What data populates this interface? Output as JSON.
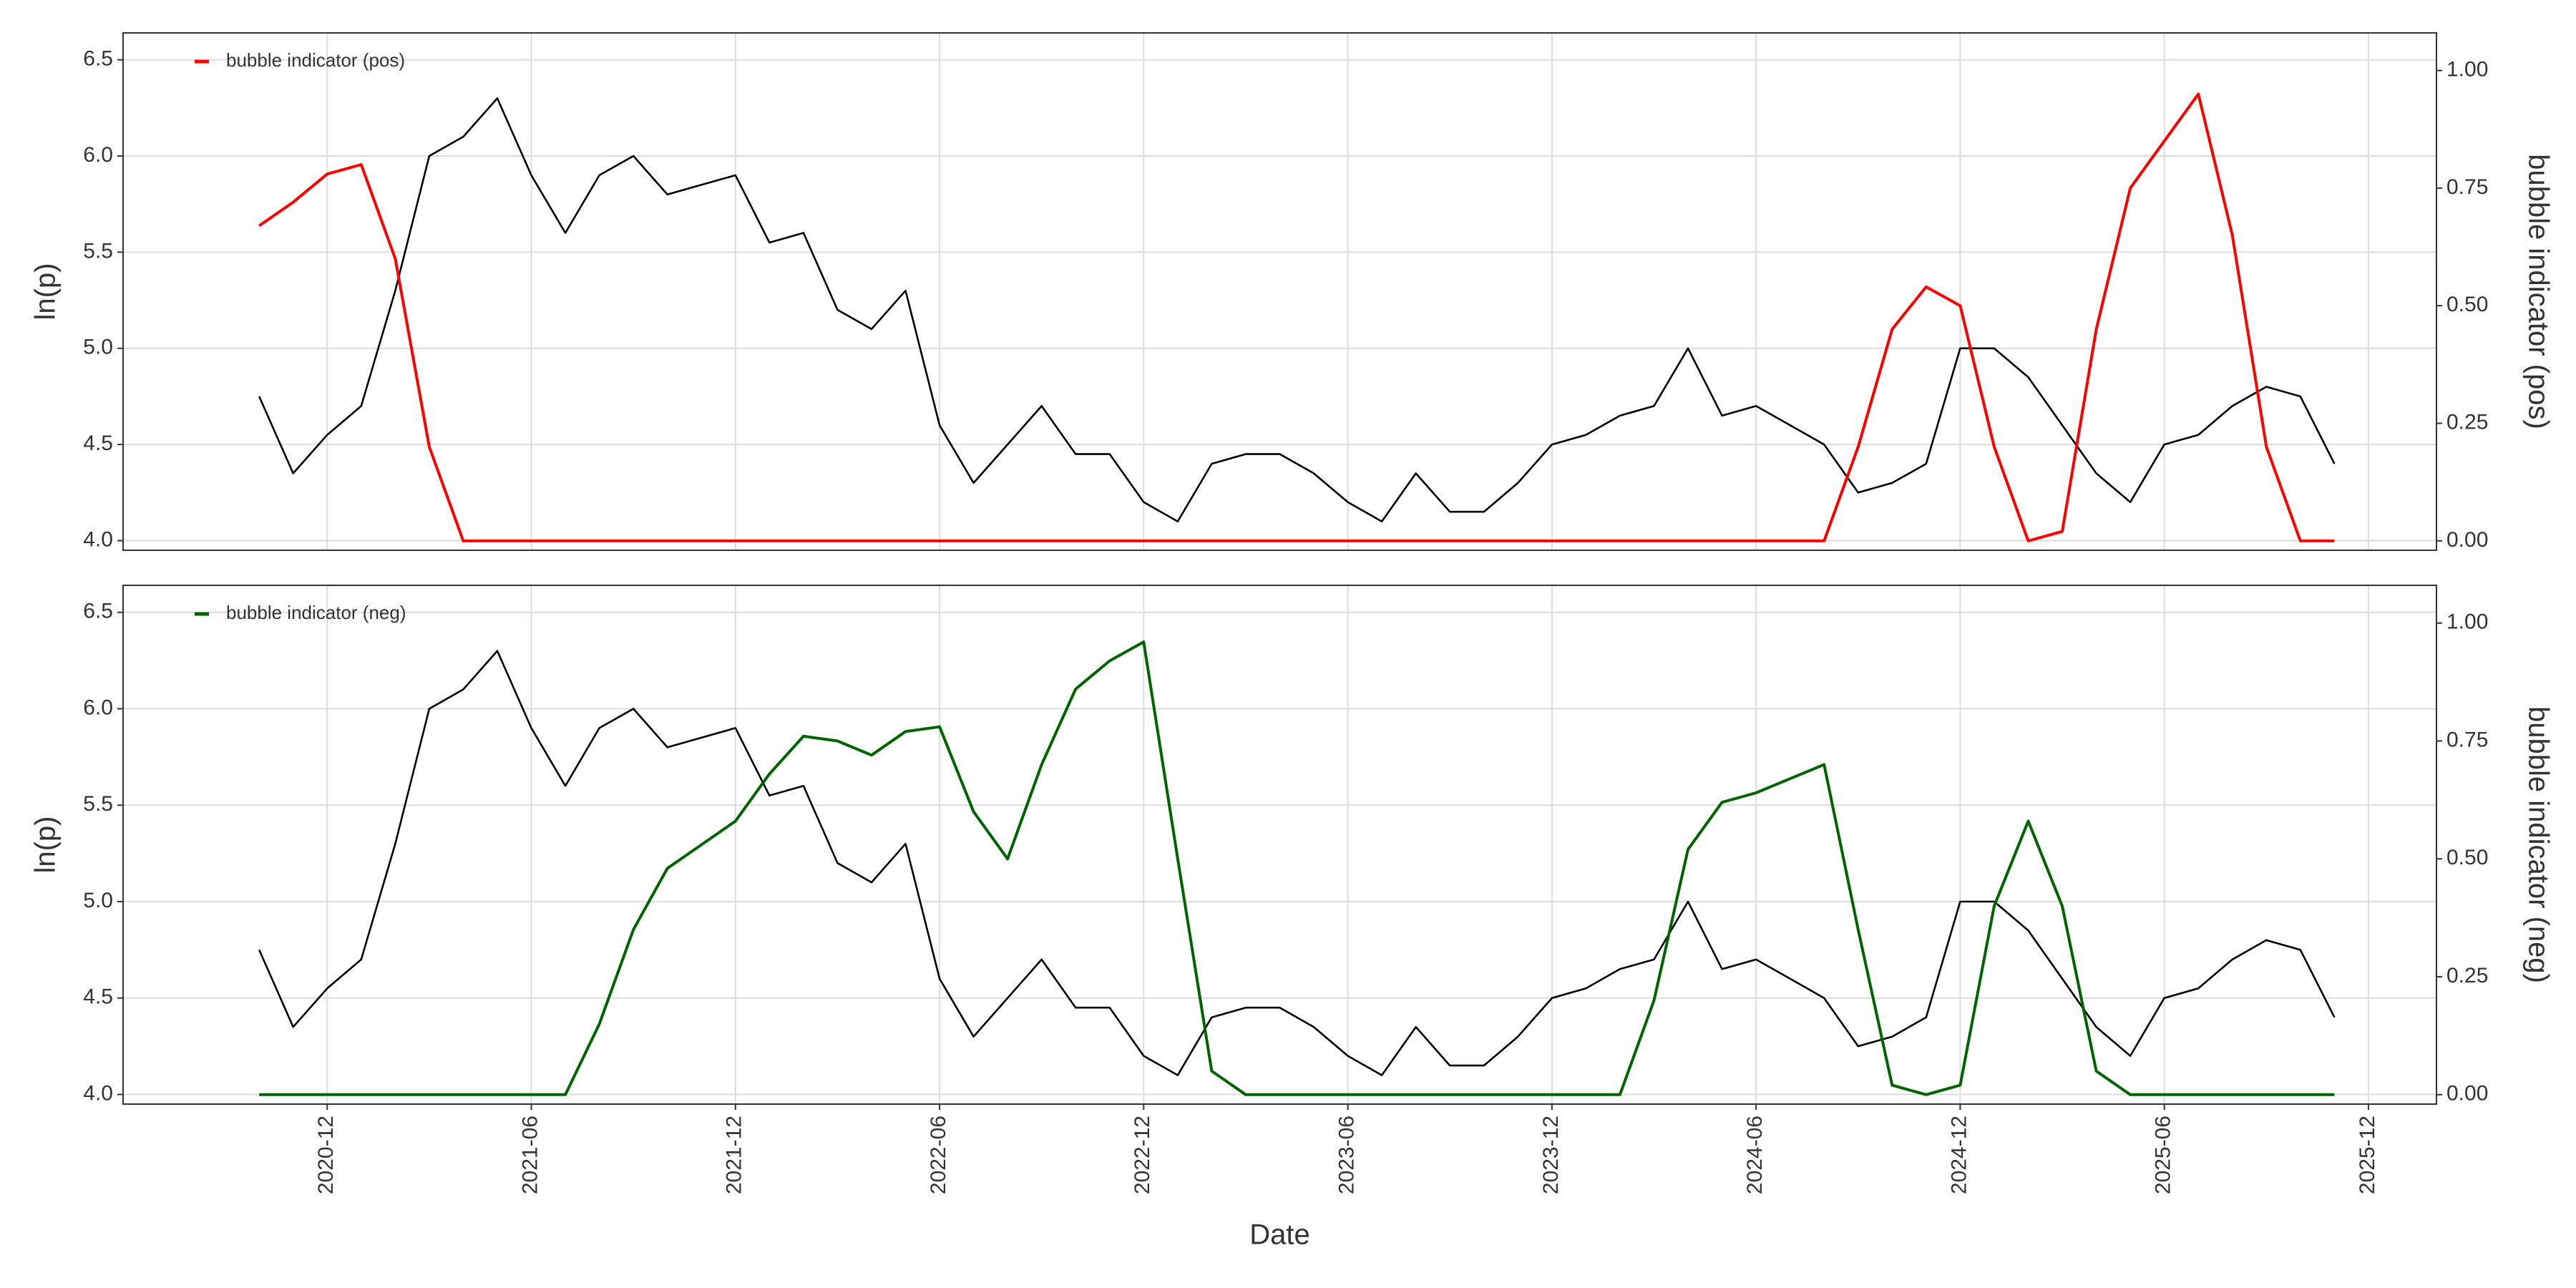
{
  "chart_data": [
    {
      "type": "line",
      "y_label": "ln(p)",
      "y2_label": "bubble indicator (pos)",
      "legend": "top-left",
      "grid": true,
      "xlim": [
        "2020-06",
        "2026-02"
      ],
      "ylim": [
        3.95,
        6.64
      ],
      "yticks": [
        {
          "value": 4,
          "label": "4.0"
        },
        4.5,
        {
          "value": 5,
          "label": "5.0"
        },
        5.5,
        {
          "value": 6,
          "label": "6.0"
        },
        6.5
      ],
      "y2lim": [
        -0.02,
        1.08
      ],
      "y2ticks": [
        {
          "value": 0,
          "label": "0.00"
        },
        {
          "value": 0.25,
          "label": "0.25"
        },
        {
          "value": 0.5,
          "label": "0.50"
        },
        {
          "value": 0.75,
          "label": "0.75"
        },
        {
          "value": 1,
          "label": "1.00"
        }
      ],
      "x": [
        "2020-10",
        "2020-11",
        "2020-12",
        "2021-01",
        "2021-02",
        "2021-03",
        "2021-04",
        "2021-05",
        "2021-06",
        "2021-07",
        "2021-08",
        "2021-09",
        "2021-10",
        "2021-11",
        "2021-12",
        "2022-01",
        "2022-02",
        "2022-03",
        "2022-04",
        "2022-05",
        "2022-06",
        "2022-07",
        "2022-08",
        "2022-09",
        "2022-10",
        "2022-11",
        "2022-12",
        "2023-01",
        "2023-02",
        "2023-03",
        "2023-04",
        "2023-05",
        "2023-06",
        "2023-07",
        "2023-08",
        "2023-09",
        "2023-10",
        "2023-11",
        "2023-12",
        "2024-01",
        "2024-02",
        "2024-03",
        "2024-04",
        "2024-05",
        "2024-06",
        "2024-07",
        "2024-08",
        "2024-09",
        "2024-10",
        "2024-11",
        "2024-12",
        "2025-01",
        "2025-02",
        "2025-03",
        "2025-04",
        "2025-05",
        "2025-06",
        "2025-07",
        "2025-08",
        "2025-09",
        "2025-10",
        "2025-11"
      ],
      "series": [
        {
          "color": "#000000",
          "values": [
            4.75,
            4.35,
            4.55,
            4.7,
            5.3,
            6.0,
            6.1,
            6.3,
            5.9,
            5.6,
            5.9,
            6.0,
            5.8,
            5.85,
            5.9,
            5.55,
            5.6,
            5.2,
            5.1,
            5.3,
            4.6,
            4.3,
            4.5,
            4.7,
            4.45,
            4.45,
            4.2,
            4.1,
            4.4,
            4.45,
            4.45,
            4.35,
            4.2,
            4.1,
            4.35,
            4.15,
            4.15,
            4.3,
            4.5,
            4.55,
            4.65,
            4.7,
            5.0,
            4.65,
            4.7,
            4.6,
            4.5,
            4.25,
            4.3,
            4.4,
            5.0,
            5.0,
            4.85,
            4.6,
            4.35,
            4.2,
            4.5,
            4.55,
            4.7,
            4.8,
            4.75,
            4.4
          ]
        },
        {
          "name": "bubble indicator (pos)",
          "color": "#ff0000",
          "axis": "y2",
          "values": [
            0.67,
            0.72,
            0.78,
            0.8,
            0.6,
            0.2,
            0,
            0,
            0,
            0,
            0,
            0,
            0,
            0,
            0,
            0,
            0,
            0,
            0,
            0,
            0,
            0,
            0,
            0,
            0,
            0,
            0,
            0,
            0,
            0,
            0,
            0,
            0,
            0,
            0,
            0,
            0,
            0,
            0,
            0,
            0,
            0,
            0,
            0,
            0,
            0,
            0,
            0.2,
            0.45,
            0.54,
            0.5,
            0.2,
            0,
            0.02,
            0.45,
            0.75,
            0.85,
            0.95,
            0.65,
            0.2,
            0,
            0
          ]
        }
      ]
    },
    {
      "type": "line",
      "y_label": "ln(p)",
      "y2_label": "bubble indicator (neg)",
      "x_label": "Date",
      "legend": "top-left",
      "grid": true,
      "xlim": [
        "2020-06",
        "2026-02"
      ],
      "xticks": [
        "2020-12",
        "2021-06",
        "2021-12",
        "2022-06",
        "2022-12",
        "2023-06",
        "2023-12",
        "2024-06",
        "2024-12",
        "2025-06",
        "2025-12"
      ],
      "ylim": [
        3.95,
        6.64
      ],
      "yticks": [
        {
          "value": 4,
          "label": "4.0"
        },
        4.5,
        {
          "value": 5,
          "label": "5.0"
        },
        5.5,
        {
          "value": 6,
          "label": "6.0"
        },
        6.5
      ],
      "y2lim": [
        -0.02,
        1.08
      ],
      "y2ticks": [
        {
          "value": 0,
          "label": "0.00"
        },
        {
          "value": 0.25,
          "label": "0.25"
        },
        {
          "value": 0.5,
          "label": "0.50"
        },
        {
          "value": 0.75,
          "label": "0.75"
        },
        {
          "value": 1,
          "label": "1.00"
        }
      ],
      "x": [
        "2020-10",
        "2020-11",
        "2020-12",
        "2021-01",
        "2021-02",
        "2021-03",
        "2021-04",
        "2021-05",
        "2021-06",
        "2021-07",
        "2021-08",
        "2021-09",
        "2021-10",
        "2021-11",
        "2021-12",
        "2022-01",
        "2022-02",
        "2022-03",
        "2022-04",
        "2022-05",
        "2022-06",
        "2022-07",
        "2022-08",
        "2022-09",
        "2022-10",
        "2022-11",
        "2022-12",
        "2023-01",
        "2023-02",
        "2023-03",
        "2023-04",
        "2023-05",
        "2023-06",
        "2023-07",
        "2023-08",
        "2023-09",
        "2023-10",
        "2023-11",
        "2023-12",
        "2024-01",
        "2024-02",
        "2024-03",
        "2024-04",
        "2024-05",
        "2024-06",
        "2024-07",
        "2024-08",
        "2024-09",
        "2024-10",
        "2024-11",
        "2024-12",
        "2025-01",
        "2025-02",
        "2025-03",
        "2025-04",
        "2025-05",
        "2025-06",
        "2025-07",
        "2025-08",
        "2025-09",
        "2025-10",
        "2025-11"
      ],
      "series": [
        {
          "color": "#000000",
          "values": [
            4.75,
            4.35,
            4.55,
            4.7,
            5.3,
            6.0,
            6.1,
            6.3,
            5.9,
            5.6,
            5.9,
            6.0,
            5.8,
            5.85,
            5.9,
            5.55,
            5.6,
            5.2,
            5.1,
            5.3,
            4.6,
            4.3,
            4.5,
            4.7,
            4.45,
            4.45,
            4.2,
            4.1,
            4.4,
            4.45,
            4.45,
            4.35,
            4.2,
            4.1,
            4.35,
            4.15,
            4.15,
            4.3,
            4.5,
            4.55,
            4.65,
            4.7,
            5.0,
            4.65,
            4.7,
            4.6,
            4.5,
            4.25,
            4.3,
            4.4,
            5.0,
            5.0,
            4.85,
            4.6,
            4.35,
            4.2,
            4.5,
            4.55,
            4.7,
            4.8,
            4.75,
            4.4
          ]
        },
        {
          "name": "bubble indicator (neg)",
          "color": "#006400",
          "axis": "y2",
          "values": [
            0,
            0,
            0,
            0,
            0,
            0,
            0,
            0,
            0,
            0,
            0.15,
            0.35,
            0.48,
            0.53,
            0.58,
            0.68,
            0.76,
            0.75,
            0.72,
            0.77,
            0.78,
            0.6,
            0.5,
            0.7,
            0.86,
            0.92,
            0.96,
            0.5,
            0.05,
            0,
            0,
            0,
            0,
            0,
            0,
            0,
            0,
            0,
            0,
            0,
            0,
            0.2,
            0.52,
            0.62,
            0.64,
            0.67,
            0.7,
            0.35,
            0.02,
            0,
            0.02,
            0.4,
            0.58,
            0.4,
            0.05,
            0,
            0,
            0,
            0,
            0,
            0,
            0
          ]
        }
      ]
    }
  ]
}
